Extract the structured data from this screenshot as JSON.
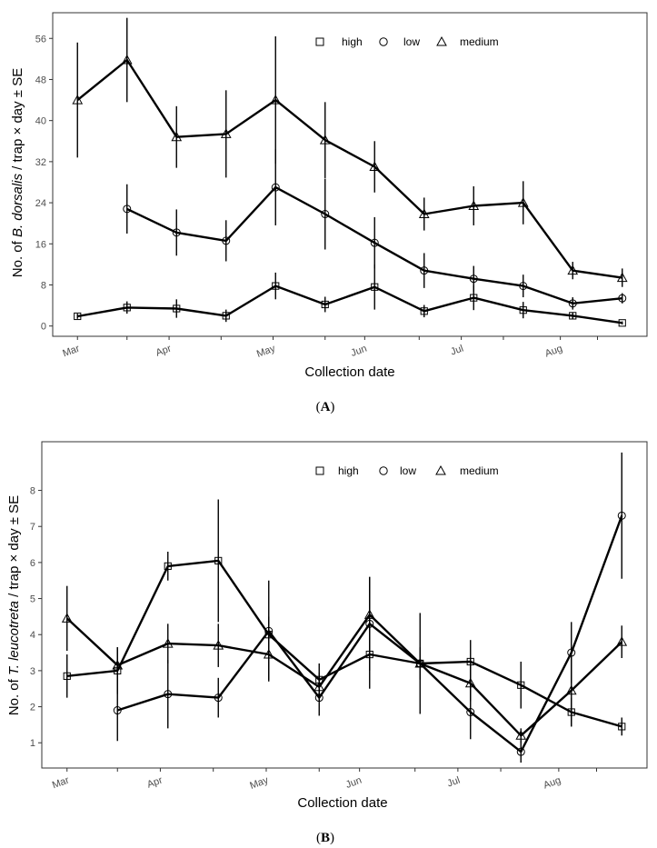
{
  "chart_data": [
    {
      "type": "line",
      "panel_label": "(A)",
      "panel_label_parts": {
        "open": "(",
        "letter": "A",
        "close": ")"
      },
      "xlabel": "Collection date",
      "ylabel_parts": {
        "prefix": "No. of ",
        "italic": "B. dorsalis",
        "suffix": " / trap × day ± SE"
      },
      "ylim": [
        -2,
        61
      ],
      "yticks": [
        0,
        8,
        16,
        24,
        32,
        40,
        48,
        56
      ],
      "xlim": [
        -0.5,
        11.5
      ],
      "x_positions": [
        0,
        1,
        2,
        3,
        4,
        5,
        6,
        7,
        8,
        9,
        10,
        11
      ],
      "month_ticks": [
        {
          "x": 0,
          "label": "Mar"
        },
        {
          "x": 1.85,
          "label": "Apr"
        },
        {
          "x": 3.95,
          "label": "May"
        },
        {
          "x": 5.8,
          "label": "Jun"
        },
        {
          "x": 7.75,
          "label": "Jul"
        },
        {
          "x": 9.75,
          "label": "Aug"
        }
      ],
      "minor_ticks": [
        1,
        2.9,
        5,
        6.9,
        8.6,
        10.5
      ],
      "legend": {
        "placement": "top-right",
        "entries": [
          "high",
          "low",
          "medium"
        ]
      },
      "series": [
        {
          "name": "high",
          "marker": "square",
          "x": [
            0,
            1,
            2,
            3,
            4,
            5,
            6,
            7,
            8,
            9,
            10,
            11
          ],
          "values": [
            1.9,
            3.6,
            3.4,
            2.0,
            7.8,
            4.2,
            7.6,
            2.9,
            5.5,
            3.1,
            2.0,
            0.6
          ],
          "se": [
            0.5,
            1.2,
            1.8,
            1.2,
            2.6,
            1.5,
            4.4,
            1.2,
            2.4,
            1.6,
            0.6,
            0.3
          ]
        },
        {
          "name": "low",
          "marker": "circle",
          "x": [
            1,
            2,
            3,
            4,
            5,
            6,
            7,
            8,
            9,
            10,
            11
          ],
          "values": [
            22.8,
            18.2,
            16.6,
            27.0,
            21.8,
            16.2,
            10.8,
            9.2,
            7.8,
            4.4,
            5.4
          ],
          "se": [
            4.8,
            4.5,
            4.0,
            7.4,
            6.9,
            5.0,
            3.4,
            2.5,
            2.2,
            1.2,
            1.0
          ]
        },
        {
          "name": "medium",
          "marker": "triangle",
          "x": [
            0,
            1,
            2,
            3,
            4,
            5,
            6,
            7,
            8,
            9,
            10,
            11
          ],
          "values": [
            44.0,
            51.8,
            36.8,
            37.4,
            44.0,
            36.2,
            31.0,
            21.8,
            23.4,
            24.0,
            10.8,
            9.4
          ],
          "se": [
            11.2,
            8.2,
            6.0,
            8.5,
            12.4,
            7.4,
            5.0,
            3.2,
            3.8,
            4.2,
            1.7,
            1.8
          ]
        }
      ]
    },
    {
      "type": "line",
      "panel_label": "(B)",
      "panel_label_parts": {
        "open": "(",
        "letter": "B",
        "close": ")"
      },
      "xlabel": "Collection date",
      "ylabel_parts": {
        "prefix": "No. of ",
        "italic": "T. leucotreta",
        "suffix": " / trap × day ± SE"
      },
      "ylim": [
        0.3,
        9.35
      ],
      "yticks": [
        1,
        2,
        3,
        4,
        5,
        6,
        7,
        8
      ],
      "xlim": [
        -0.5,
        11.5
      ],
      "x_positions": [
        0,
        1,
        2,
        3,
        4,
        5,
        6,
        7,
        8,
        9,
        10,
        11
      ],
      "month_ticks": [
        {
          "x": 0,
          "label": "Mar"
        },
        {
          "x": 1.85,
          "label": "Apr"
        },
        {
          "x": 3.95,
          "label": "May"
        },
        {
          "x": 5.8,
          "label": "Jun"
        },
        {
          "x": 7.75,
          "label": "Jul"
        },
        {
          "x": 9.75,
          "label": "Aug"
        }
      ],
      "minor_ticks": [
        1,
        2.9,
        5,
        6.9,
        8.6,
        10.5
      ],
      "legend": {
        "placement": "top-right",
        "entries": [
          "high",
          "low",
          "medium"
        ]
      },
      "series": [
        {
          "name": "high",
          "marker": "square",
          "x": [
            0,
            1,
            2,
            3,
            4,
            5,
            6,
            7,
            8,
            9,
            10,
            11
          ],
          "values": [
            2.85,
            3.0,
            5.9,
            6.05,
            4.0,
            2.75,
            3.45,
            3.2,
            3.25,
            2.6,
            1.85,
            1.45
          ],
          "se": [
            0.6,
            0.65,
            0.4,
            1.7,
            0.5,
            0.45,
            0.95,
            1.4,
            0.6,
            0.65,
            0.4,
            0.25
          ]
        },
        {
          "name": "low",
          "marker": "circle",
          "x": [
            1,
            2,
            3,
            4,
            5,
            6,
            7,
            8,
            9,
            10,
            11
          ],
          "values": [
            1.9,
            2.35,
            2.25,
            4.1,
            2.25,
            4.3,
            3.2,
            1.85,
            0.75,
            3.5,
            7.3
          ],
          "se": [
            0.85,
            0.95,
            0.55,
            1.4,
            0.5,
            1.3,
            0.45,
            0.75,
            0.3,
            0.85,
            1.75
          ]
        },
        {
          "name": "medium",
          "marker": "triangle",
          "x": [
            0,
            1,
            2,
            3,
            4,
            5,
            6,
            7,
            8,
            9,
            10,
            11
          ],
          "values": [
            4.45,
            3.15,
            3.75,
            3.7,
            3.45,
            2.55,
            4.55,
            3.2,
            2.65,
            1.2,
            2.45,
            3.8
          ],
          "se": [
            0.9,
            0.5,
            0.55,
            0.6,
            0.7,
            0.4,
            1.05,
            0.3,
            0.5,
            0.2,
            1.0,
            0.45
          ]
        }
      ]
    }
  ]
}
